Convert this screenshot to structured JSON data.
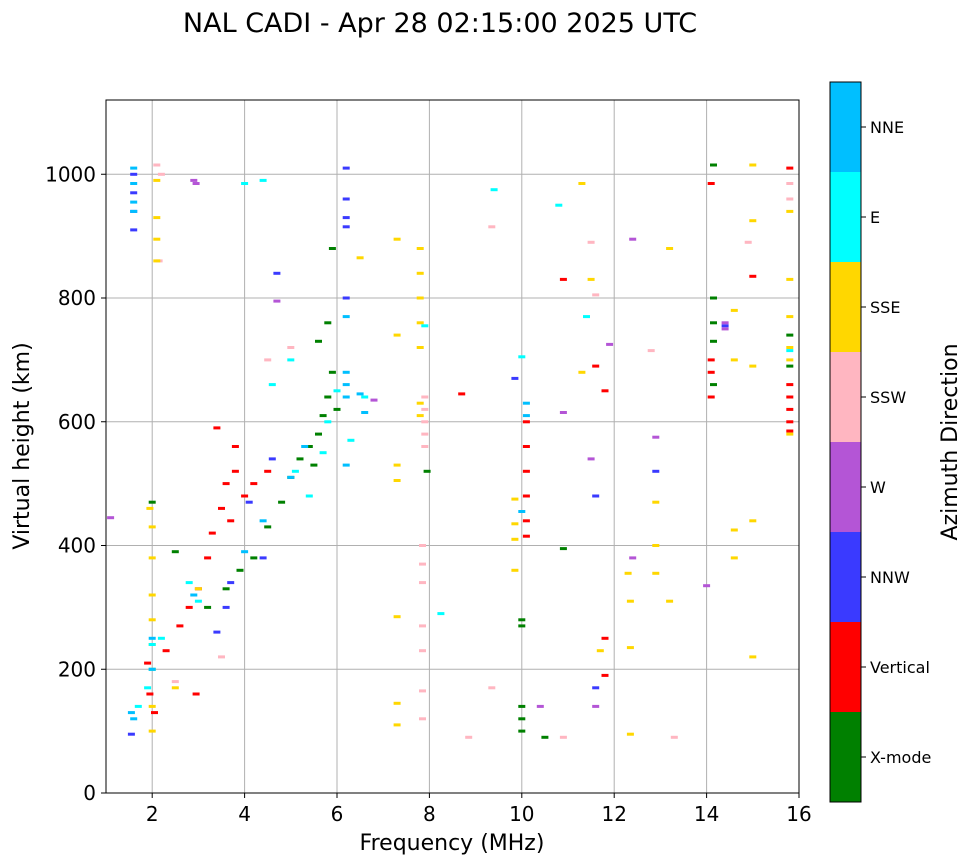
{
  "chart_data": {
    "type": "scatter",
    "title": "NAL CADI - Apr 28 02:15:00 2025 UTC",
    "xlabel": "Frequency (MHz)",
    "ylabel": "Virtual height (km)",
    "xlim": [
      1.0,
      16.0
    ],
    "ylim": [
      0,
      1120
    ],
    "xticks": [
      2,
      4,
      6,
      8,
      10,
      12,
      14,
      16
    ],
    "yticks": [
      0,
      200,
      400,
      600,
      800,
      1000
    ],
    "grid": true,
    "colorbar": {
      "label": "Azimuth Direction",
      "categories": [
        {
          "name": "X-mode",
          "color": "#008000"
        },
        {
          "name": "Vertical",
          "color": "#ff0000"
        },
        {
          "name": "NNW",
          "color": "#3a3aff"
        },
        {
          "name": "W",
          "color": "#b455d6"
        },
        {
          "name": "SSW",
          "color": "#ffb6c1"
        },
        {
          "name": "SSE",
          "color": "#ffd700"
        },
        {
          "name": "E",
          "color": "#00ffff"
        },
        {
          "name": "NNE",
          "color": "#00bfff"
        }
      ]
    },
    "series": [
      {
        "name": "X-mode",
        "color": "#008000",
        "points": [
          [
            2.0,
            470
          ],
          [
            2.5,
            390
          ],
          [
            3.2,
            300
          ],
          [
            3.6,
            330
          ],
          [
            3.9,
            360
          ],
          [
            4.2,
            380
          ],
          [
            4.5,
            430
          ],
          [
            4.8,
            470
          ],
          [
            5.0,
            510
          ],
          [
            5.2,
            540
          ],
          [
            5.4,
            560
          ],
          [
            5.5,
            530
          ],
          [
            5.6,
            580
          ],
          [
            5.7,
            610
          ],
          [
            5.8,
            640
          ],
          [
            5.9,
            680
          ],
          [
            6.0,
            620
          ],
          [
            5.6,
            730
          ],
          [
            5.8,
            760
          ],
          [
            5.9,
            880
          ],
          [
            7.95,
            520
          ],
          [
            10.0,
            140
          ],
          [
            10.0,
            120
          ],
          [
            10.0,
            100
          ],
          [
            10.0,
            280
          ],
          [
            10.0,
            270
          ],
          [
            10.5,
            90
          ],
          [
            10.9,
            395
          ],
          [
            14.15,
            800
          ],
          [
            14.15,
            760
          ],
          [
            14.15,
            730
          ],
          [
            14.15,
            660
          ],
          [
            14.15,
            1015
          ],
          [
            15.8,
            690
          ],
          [
            15.8,
            740
          ]
        ]
      },
      {
        "name": "Vertical",
        "color": "#ff0000",
        "points": [
          [
            1.9,
            210
          ],
          [
            1.95,
            160
          ],
          [
            2.05,
            130
          ],
          [
            2.3,
            230
          ],
          [
            2.6,
            270
          ],
          [
            2.8,
            300
          ],
          [
            3.0,
            330
          ],
          [
            3.2,
            380
          ],
          [
            3.3,
            420
          ],
          [
            3.5,
            460
          ],
          [
            3.6,
            500
          ],
          [
            3.7,
            440
          ],
          [
            3.8,
            520
          ],
          [
            4.0,
            480
          ],
          [
            4.2,
            500
          ],
          [
            4.5,
            520
          ],
          [
            3.4,
            590
          ],
          [
            3.8,
            560
          ],
          [
            2.95,
            160
          ],
          [
            8.7,
            645
          ],
          [
            10.1,
            600
          ],
          [
            10.1,
            560
          ],
          [
            10.1,
            520
          ],
          [
            10.1,
            480
          ],
          [
            10.1,
            440
          ],
          [
            10.1,
            415
          ],
          [
            10.9,
            830
          ],
          [
            11.6,
            690
          ],
          [
            11.8,
            650
          ],
          [
            11.8,
            250
          ],
          [
            11.8,
            190
          ],
          [
            14.1,
            700
          ],
          [
            14.1,
            680
          ],
          [
            14.1,
            640
          ],
          [
            14.1,
            985
          ],
          [
            15.0,
            835
          ],
          [
            15.8,
            1010
          ],
          [
            15.8,
            660
          ],
          [
            15.8,
            640
          ],
          [
            15.8,
            620
          ],
          [
            15.8,
            600
          ],
          [
            15.8,
            585
          ]
        ]
      },
      {
        "name": "NNW",
        "color": "#3a3aff",
        "points": [
          [
            1.6,
            1000
          ],
          [
            1.6,
            970
          ],
          [
            1.6,
            940
          ],
          [
            1.6,
            910
          ],
          [
            1.55,
            95
          ],
          [
            3.4,
            260
          ],
          [
            3.6,
            300
          ],
          [
            3.7,
            340
          ],
          [
            4.4,
            380
          ],
          [
            4.1,
            470
          ],
          [
            4.6,
            540
          ],
          [
            4.7,
            840
          ],
          [
            6.2,
            960
          ],
          [
            6.2,
            930
          ],
          [
            6.2,
            915
          ],
          [
            6.2,
            1010
          ],
          [
            6.2,
            800
          ],
          [
            9.85,
            670
          ],
          [
            11.6,
            480
          ],
          [
            11.6,
            170
          ],
          [
            12.9,
            520
          ],
          [
            14.4,
            755
          ]
        ]
      },
      {
        "name": "W",
        "color": "#b455d6",
        "points": [
          [
            1.1,
            445
          ],
          [
            2.9,
            990
          ],
          [
            2.95,
            985
          ],
          [
            4.7,
            795
          ],
          [
            6.8,
            635
          ],
          [
            10.9,
            615
          ],
          [
            11.5,
            540
          ],
          [
            11.6,
            140
          ],
          [
            10.4,
            140
          ],
          [
            12.4,
            380
          ],
          [
            12.4,
            895
          ],
          [
            12.9,
            575
          ],
          [
            14.0,
            335
          ],
          [
            14.4,
            760
          ],
          [
            14.4,
            750
          ],
          [
            11.9,
            725
          ]
        ]
      },
      {
        "name": "SSW",
        "color": "#ffb6c1",
        "points": [
          [
            2.1,
            1015
          ],
          [
            2.2,
            1000
          ],
          [
            2.15,
            860
          ],
          [
            2.5,
            180
          ],
          [
            3.5,
            220
          ],
          [
            4.5,
            700
          ],
          [
            5.0,
            720
          ],
          [
            7.9,
            640
          ],
          [
            7.9,
            620
          ],
          [
            7.9,
            600
          ],
          [
            7.9,
            580
          ],
          [
            7.9,
            560
          ],
          [
            7.85,
            400
          ],
          [
            7.85,
            370
          ],
          [
            7.85,
            340
          ],
          [
            7.85,
            270
          ],
          [
            7.85,
            230
          ],
          [
            7.85,
            165
          ],
          [
            7.85,
            120
          ],
          [
            8.85,
            90
          ],
          [
            9.35,
            170
          ],
          [
            9.35,
            915
          ],
          [
            10.9,
            90
          ],
          [
            11.5,
            890
          ],
          [
            11.6,
            805
          ],
          [
            12.8,
            715
          ],
          [
            13.3,
            90
          ],
          [
            14.9,
            890
          ],
          [
            15.8,
            960
          ],
          [
            15.8,
            985
          ]
        ]
      },
      {
        "name": "SSE",
        "color": "#ffd700",
        "points": [
          [
            1.95,
            460
          ],
          [
            2.0,
            430
          ],
          [
            2.0,
            380
          ],
          [
            2.0,
            320
          ],
          [
            2.0,
            280
          ],
          [
            2.0,
            240
          ],
          [
            2.0,
            200
          ],
          [
            2.0,
            140
          ],
          [
            2.0,
            100
          ],
          [
            2.1,
            990
          ],
          [
            2.1,
            930
          ],
          [
            2.1,
            895
          ],
          [
            2.1,
            860
          ],
          [
            2.5,
            170
          ],
          [
            3.0,
            330
          ],
          [
            6.5,
            865
          ],
          [
            7.3,
            895
          ],
          [
            7.3,
            740
          ],
          [
            7.3,
            530
          ],
          [
            7.3,
            505
          ],
          [
            7.3,
            285
          ],
          [
            7.3,
            145
          ],
          [
            7.3,
            110
          ],
          [
            7.8,
            880
          ],
          [
            7.8,
            840
          ],
          [
            7.8,
            800
          ],
          [
            7.8,
            760
          ],
          [
            7.8,
            720
          ],
          [
            7.8,
            630
          ],
          [
            7.8,
            610
          ],
          [
            9.85,
            475
          ],
          [
            9.85,
            435
          ],
          [
            9.85,
            410
          ],
          [
            9.85,
            360
          ],
          [
            11.3,
            985
          ],
          [
            11.3,
            680
          ],
          [
            11.5,
            830
          ],
          [
            11.7,
            230
          ],
          [
            12.3,
            355
          ],
          [
            12.35,
            310
          ],
          [
            12.35,
            235
          ],
          [
            12.35,
            95
          ],
          [
            12.9,
            470
          ],
          [
            12.9,
            400
          ],
          [
            12.9,
            355
          ],
          [
            13.2,
            880
          ],
          [
            13.2,
            310
          ],
          [
            14.6,
            780
          ],
          [
            14.6,
            700
          ],
          [
            14.6,
            425
          ],
          [
            14.6,
            380
          ],
          [
            15.0,
            1015
          ],
          [
            15.0,
            925
          ],
          [
            15.0,
            690
          ],
          [
            15.0,
            440
          ],
          [
            15.0,
            220
          ],
          [
            15.8,
            940
          ],
          [
            15.8,
            830
          ],
          [
            15.8,
            770
          ],
          [
            15.8,
            720
          ],
          [
            15.8,
            700
          ],
          [
            15.8,
            580
          ]
        ]
      },
      {
        "name": "E",
        "color": "#00ffff",
        "points": [
          [
            1.7,
            140
          ],
          [
            1.9,
            170
          ],
          [
            2.0,
            240
          ],
          [
            2.0,
            200
          ],
          [
            2.2,
            250
          ],
          [
            2.8,
            340
          ],
          [
            3.0,
            310
          ],
          [
            4.0,
            985
          ],
          [
            4.4,
            990
          ],
          [
            4.6,
            660
          ],
          [
            5.0,
            700
          ],
          [
            5.1,
            520
          ],
          [
            5.4,
            480
          ],
          [
            5.7,
            550
          ],
          [
            5.8,
            600
          ],
          [
            6.0,
            650
          ],
          [
            6.3,
            570
          ],
          [
            6.6,
            640
          ],
          [
            7.9,
            755
          ],
          [
            8.25,
            290
          ],
          [
            9.4,
            975
          ],
          [
            10.0,
            705
          ],
          [
            10.8,
            950
          ],
          [
            11.4,
            770
          ],
          [
            15.8,
            715
          ]
        ]
      },
      {
        "name": "NNE",
        "color": "#00bfff",
        "points": [
          [
            1.6,
            1010
          ],
          [
            1.6,
            985
          ],
          [
            1.6,
            955
          ],
          [
            1.6,
            940
          ],
          [
            1.55,
            130
          ],
          [
            1.6,
            120
          ],
          [
            2.0,
            250
          ],
          [
            2.0,
            200
          ],
          [
            2.9,
            320
          ],
          [
            4.0,
            390
          ],
          [
            4.4,
            440
          ],
          [
            5.0,
            510
          ],
          [
            5.3,
            560
          ],
          [
            6.2,
            680
          ],
          [
            6.2,
            660
          ],
          [
            6.2,
            640
          ],
          [
            6.2,
            530
          ],
          [
            6.2,
            770
          ],
          [
            6.5,
            645
          ],
          [
            6.6,
            615
          ],
          [
            10.1,
            630
          ],
          [
            10.1,
            610
          ],
          [
            10.0,
            455
          ]
        ]
      }
    ]
  }
}
